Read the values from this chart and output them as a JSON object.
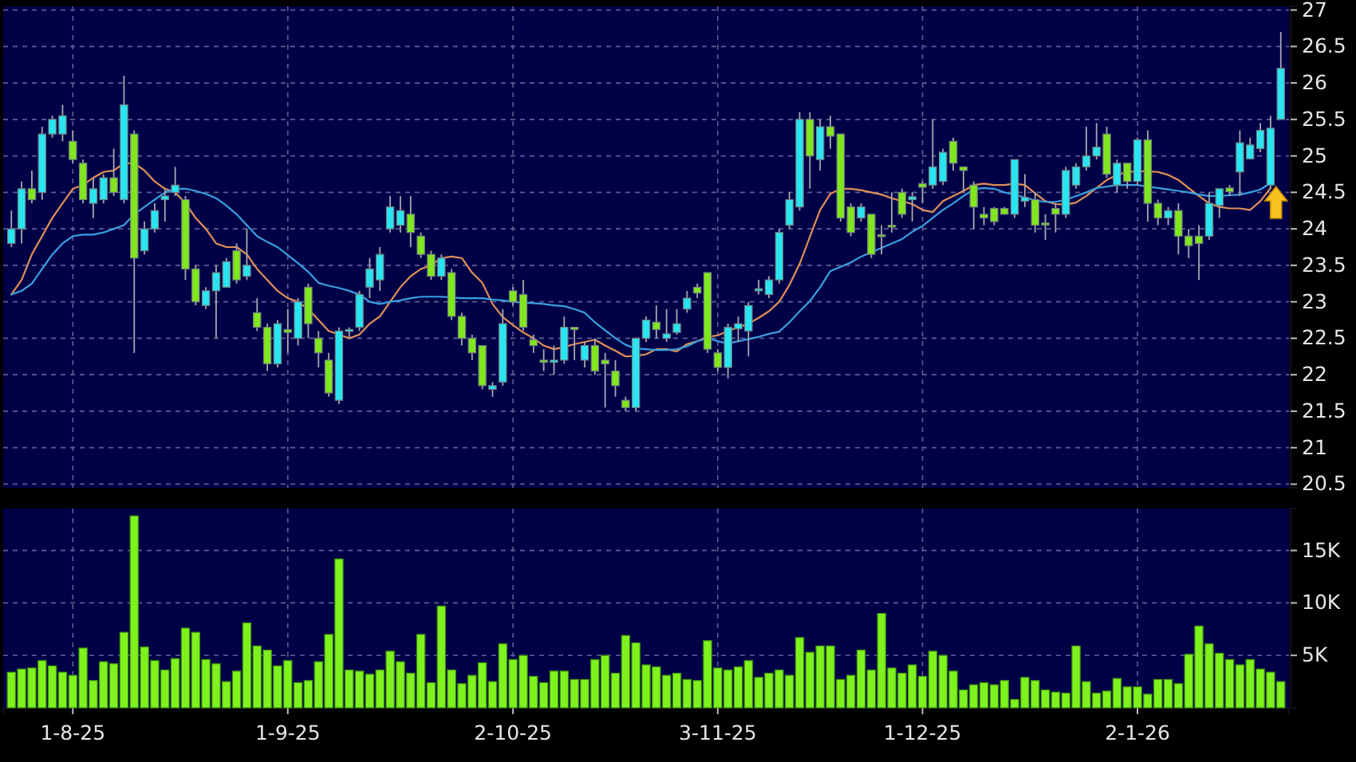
{
  "chart_data": [
    {
      "type": "candlestick",
      "categories": [
        null,
        null,
        null,
        null,
        null,
        null,
        null,
        null,
        null,
        null,
        null,
        null,
        null,
        null,
        null,
        null,
        null,
        null,
        null,
        null,
        null,
        null,
        null,
        null,
        null,
        null,
        null,
        null,
        null,
        null,
        null,
        null,
        null,
        null,
        null,
        null,
        null,
        null,
        null,
        null,
        null,
        null,
        null,
        null,
        null,
        null,
        null,
        null,
        null,
        null,
        null,
        null,
        null,
        null,
        null,
        null,
        null,
        null,
        null,
        null,
        null,
        null,
        null,
        null,
        null,
        null,
        null,
        null,
        null,
        null,
        null,
        null,
        null,
        null,
        null,
        null,
        null,
        null,
        null,
        null,
        null,
        null,
        null,
        null,
        null,
        null,
        null,
        null,
        null,
        null,
        null,
        null,
        null,
        null,
        null,
        null,
        null,
        null,
        null,
        null,
        null,
        null,
        null,
        null,
        null,
        null,
        null,
        null,
        null,
        null,
        null,
        null,
        null,
        null,
        null,
        null,
        null,
        null,
        null,
        null,
        null,
        null,
        null,
        null,
        null
      ],
      "ohlc": [
        [
          23.8,
          24.25,
          23.75,
          24.0
        ],
        [
          24.0,
          24.65,
          23.8,
          24.55
        ],
        [
          24.55,
          24.8,
          24.35,
          24.4
        ],
        [
          24.5,
          25.4,
          24.4,
          25.3
        ],
        [
          25.3,
          25.55,
          25.25,
          25.5
        ],
        [
          25.3,
          25.7,
          25.2,
          25.55
        ],
        [
          25.2,
          25.35,
          24.9,
          24.95
        ],
        [
          24.9,
          24.95,
          24.35,
          24.4
        ],
        [
          24.35,
          24.7,
          24.15,
          24.55
        ],
        [
          24.4,
          24.75,
          24.35,
          24.7
        ],
        [
          24.7,
          25.1,
          24.45,
          24.5
        ],
        [
          24.4,
          26.1,
          24.35,
          25.7
        ],
        [
          25.3,
          25.35,
          22.3,
          23.6
        ],
        [
          23.7,
          24.1,
          23.65,
          24.0
        ],
        [
          24.0,
          24.35,
          23.95,
          24.25
        ],
        [
          24.4,
          24.55,
          24.1,
          24.45
        ],
        [
          24.5,
          24.85,
          24.45,
          24.6
        ],
        [
          24.4,
          24.45,
          23.3,
          23.45
        ],
        [
          23.45,
          23.5,
          22.95,
          23.0
        ],
        [
          22.95,
          23.2,
          22.9,
          23.15
        ],
        [
          23.15,
          23.5,
          22.5,
          23.4
        ],
        [
          23.2,
          23.6,
          23.2,
          23.55
        ],
        [
          23.7,
          23.8,
          23.25,
          23.3
        ],
        [
          23.35,
          24.0,
          23.3,
          23.5
        ],
        [
          22.85,
          23.05,
          22.6,
          22.65
        ],
        [
          22.65,
          22.7,
          22.05,
          22.15
        ],
        [
          22.15,
          22.75,
          22.1,
          22.7
        ],
        [
          22.62,
          22.9,
          22.3,
          22.58
        ],
        [
          22.5,
          23.05,
          22.4,
          23.0
        ],
        [
          23.2,
          23.25,
          22.5,
          22.7
        ],
        [
          22.5,
          22.6,
          22.1,
          22.3
        ],
        [
          22.2,
          22.3,
          21.7,
          21.75
        ],
        [
          21.65,
          22.65,
          21.6,
          22.6
        ],
        [
          22.6,
          22.65,
          22.5,
          22.62
        ],
        [
          22.65,
          23.15,
          22.6,
          23.1
        ],
        [
          23.2,
          23.6,
          23.05,
          23.45
        ],
        [
          23.3,
          23.75,
          23.15,
          23.65
        ],
        [
          24.0,
          24.45,
          23.95,
          24.3
        ],
        [
          24.05,
          24.45,
          23.95,
          24.25
        ],
        [
          24.2,
          24.45,
          23.75,
          23.95
        ],
        [
          23.9,
          23.95,
          23.6,
          23.65
        ],
        [
          23.65,
          23.7,
          23.3,
          23.35
        ],
        [
          23.35,
          23.65,
          23.3,
          23.6
        ],
        [
          23.4,
          23.45,
          22.75,
          22.8
        ],
        [
          22.8,
          22.85,
          22.4,
          22.5
        ],
        [
          22.5,
          22.55,
          22.2,
          22.3
        ],
        [
          22.4,
          22.4,
          21.8,
          21.85
        ],
        [
          21.8,
          21.9,
          21.7,
          21.85
        ],
        [
          21.9,
          22.9,
          21.85,
          22.7
        ],
        [
          23.15,
          23.2,
          22.95,
          23.0
        ],
        [
          23.1,
          23.3,
          22.6,
          22.65
        ],
        [
          22.48,
          22.55,
          22.3,
          22.4
        ],
        [
          22.2,
          22.35,
          22.05,
          22.17
        ],
        [
          22.17,
          22.4,
          22.0,
          22.2
        ],
        [
          22.2,
          22.8,
          22.15,
          22.65
        ],
        [
          22.65,
          22.65,
          22.2,
          22.62
        ],
        [
          22.2,
          22.45,
          22.1,
          22.4
        ],
        [
          22.4,
          22.5,
          22.0,
          22.05
        ],
        [
          22.2,
          22.3,
          21.55,
          22.15
        ],
        [
          22.05,
          22.2,
          21.7,
          21.85
        ],
        [
          21.65,
          21.7,
          21.5,
          21.55
        ],
        [
          21.55,
          22.5,
          21.5,
          22.5
        ],
        [
          22.5,
          22.8,
          22.45,
          22.75
        ],
        [
          22.72,
          22.95,
          22.5,
          22.62
        ],
        [
          22.5,
          22.9,
          22.45,
          22.56
        ],
        [
          22.58,
          22.9,
          22.55,
          22.7
        ],
        [
          22.9,
          23.15,
          22.85,
          23.05
        ],
        [
          23.2,
          23.25,
          23.05,
          23.12
        ],
        [
          23.4,
          23.4,
          22.3,
          22.35
        ],
        [
          22.3,
          22.35,
          22.05,
          22.1
        ],
        [
          22.1,
          22.7,
          21.95,
          22.65
        ],
        [
          22.63,
          22.8,
          22.45,
          22.7
        ],
        [
          22.6,
          23.0,
          22.25,
          22.95
        ],
        [
          23.15,
          23.3,
          23.1,
          23.18
        ],
        [
          23.1,
          23.35,
          23.05,
          23.3
        ],
        [
          23.3,
          24.0,
          23.25,
          23.95
        ],
        [
          24.05,
          24.5,
          24.0,
          24.4
        ],
        [
          24.3,
          25.6,
          24.25,
          25.5
        ],
        [
          25.5,
          25.6,
          24.55,
          25.0
        ],
        [
          24.95,
          25.5,
          24.8,
          25.4
        ],
        [
          25.4,
          25.55,
          25.1,
          25.27
        ],
        [
          25.3,
          25.3,
          24.1,
          24.15
        ],
        [
          24.3,
          24.35,
          23.9,
          23.95
        ],
        [
          24.15,
          24.35,
          24.1,
          24.3
        ],
        [
          24.2,
          24.2,
          23.6,
          23.65
        ],
        [
          23.92,
          24.05,
          23.65,
          23.9
        ],
        [
          24.05,
          24.5,
          23.95,
          24.03
        ],
        [
          24.5,
          24.55,
          24.15,
          24.2
        ],
        [
          24.4,
          24.5,
          24.1,
          24.44
        ],
        [
          24.62,
          24.65,
          24.35,
          24.57
        ],
        [
          24.6,
          25.5,
          24.55,
          24.85
        ],
        [
          24.65,
          25.1,
          24.6,
          25.05
        ],
        [
          25.2,
          25.25,
          24.8,
          24.9
        ],
        [
          24.85,
          24.85,
          24.5,
          24.8
        ],
        [
          24.6,
          24.65,
          24.0,
          24.3
        ],
        [
          24.2,
          24.3,
          24.05,
          24.15
        ],
        [
          24.28,
          24.3,
          24.05,
          24.1
        ],
        [
          24.28,
          24.3,
          24.2,
          24.2
        ],
        [
          24.2,
          24.95,
          24.15,
          24.95
        ],
        [
          24.38,
          24.75,
          24.3,
          24.43
        ],
        [
          24.4,
          24.5,
          23.95,
          24.05
        ],
        [
          24.08,
          24.2,
          23.85,
          24.06
        ],
        [
          24.28,
          24.35,
          23.95,
          24.2
        ],
        [
          24.2,
          24.85,
          24.15,
          24.8
        ],
        [
          24.6,
          24.9,
          24.55,
          24.85
        ],
        [
          24.85,
          25.4,
          24.8,
          25.0
        ],
        [
          25.0,
          25.45,
          24.95,
          25.12
        ],
        [
          25.3,
          25.4,
          24.7,
          24.75
        ],
        [
          24.6,
          24.95,
          24.5,
          24.9
        ],
        [
          24.9,
          24.9,
          24.55,
          24.65
        ],
        [
          24.65,
          25.25,
          24.6,
          25.22
        ],
        [
          25.22,
          25.35,
          24.1,
          24.35
        ],
        [
          24.35,
          24.4,
          24.05,
          24.15
        ],
        [
          24.15,
          24.3,
          24.05,
          24.25
        ],
        [
          24.25,
          24.35,
          23.65,
          23.9
        ],
        [
          23.9,
          24.0,
          23.6,
          23.77
        ],
        [
          23.9,
          24.05,
          23.3,
          23.8
        ],
        [
          23.9,
          24.5,
          23.85,
          24.35
        ],
        [
          24.32,
          24.55,
          24.15,
          24.55
        ],
        [
          24.56,
          24.6,
          24.45,
          24.51
        ],
        [
          24.78,
          25.35,
          24.45,
          25.18
        ],
        [
          24.96,
          25.25,
          24.95,
          25.15
        ],
        [
          25.1,
          25.45,
          25.05,
          25.35
        ],
        [
          24.6,
          25.55,
          24.55,
          25.38
        ],
        [
          25.5,
          26.7,
          25.5,
          26.2
        ]
      ],
      "colors": [
        "#29e5f2",
        "#29e5f2",
        "#82e61e",
        "#29e5f2",
        "#29e5f2",
        "#29e5f2",
        "#82e61e",
        "#82e61e",
        "#29e5f2",
        "#29e5f2",
        "#82e61e",
        "#29e5f2",
        "#82e61e",
        "#29e5f2",
        "#29e5f2",
        "#29e5f2",
        "#29e5f2",
        "#82e61e",
        "#82e61e",
        "#29e5f2",
        "#29e5f2",
        "#29e5f2",
        "#82e61e",
        "#29e5f2",
        "#82e61e",
        "#82e61e",
        "#29e5f2",
        "#82e61e",
        "#29e5f2",
        "#82e61e",
        "#82e61e",
        "#82e61e",
        "#29e5f2",
        "#29e5f2",
        "#29e5f2",
        "#29e5f2",
        "#29e5f2",
        "#29e5f2",
        "#29e5f2",
        "#82e61e",
        "#82e61e",
        "#82e61e",
        "#29e5f2",
        "#82e61e",
        "#82e61e",
        "#82e61e",
        "#82e61e",
        "#29e5f2",
        "#29e5f2",
        "#82e61e",
        "#82e61e",
        "#82e61e",
        "#82e61e",
        "#29e5f2",
        "#29e5f2",
        "#82e61e",
        "#29e5f2",
        "#82e61e",
        "#82e61e",
        "#82e61e",
        "#82e61e",
        "#29e5f2",
        "#29e5f2",
        "#82e61e",
        "#29e5f2",
        "#29e5f2",
        "#29e5f2",
        "#82e61e",
        "#82e61e",
        "#82e61e",
        "#29e5f2",
        "#29e5f2",
        "#29e5f2",
        "#29e5f2",
        "#29e5f2",
        "#29e5f2",
        "#29e5f2",
        "#29e5f2",
        "#82e61e",
        "#29e5f2",
        "#82e61e",
        "#82e61e",
        "#82e61e",
        "#29e5f2",
        "#82e61e",
        "#82e61e",
        "#82e61e",
        "#82e61e",
        "#29e5f2",
        "#82e61e",
        "#29e5f2",
        "#29e5f2",
        "#82e61e",
        "#82e61e",
        "#82e61e",
        "#82e61e",
        "#82e61e",
        "#82e61e",
        "#29e5f2",
        "#29e5f2",
        "#82e61e",
        "#82e61e",
        "#82e61e",
        "#29e5f2",
        "#29e5f2",
        "#29e5f2",
        "#29e5f2",
        "#82e61e",
        "#29e5f2",
        "#82e61e",
        "#29e5f2",
        "#82e61e",
        "#82e61e",
        "#29e5f2",
        "#82e61e",
        "#82e61e",
        "#82e61e",
        "#29e5f2",
        "#29e5f2",
        "#82e61e",
        "#29e5f2",
        "#29e5f2",
        "#29e5f2",
        "#29e5f2",
        "#29e5f2"
      ],
      "series": [
        {
          "type": "line",
          "color": "#e0905a",
          "values": [
            23.1,
            23.3,
            23.65,
            23.9,
            24.15,
            24.35,
            24.55,
            24.6,
            24.7,
            24.78,
            24.8,
            24.9,
            24.9,
            24.8,
            24.65,
            24.55,
            24.5,
            24.35,
            24.15,
            24.0,
            23.8,
            23.75,
            23.75,
            23.65,
            23.45,
            23.3,
            23.15,
            23.05,
            23.0,
            22.9,
            22.75,
            22.6,
            22.55,
            22.5,
            22.55,
            22.7,
            22.8,
            23.0,
            23.2,
            23.35,
            23.45,
            23.5,
            23.6,
            23.62,
            23.6,
            23.4,
            23.26,
            22.97,
            22.79,
            22.68,
            22.58,
            22.5,
            22.4,
            22.35,
            22.38,
            22.42,
            22.45,
            22.48,
            22.4,
            22.33,
            22.25,
            22.26,
            22.28,
            22.35,
            22.35,
            22.32,
            22.42,
            22.46,
            22.52,
            22.54,
            22.6,
            22.65,
            22.7,
            22.78,
            22.87,
            23.0,
            23.23,
            23.52,
            23.89,
            24.26,
            24.48,
            24.55,
            24.55,
            24.53,
            24.5,
            24.47,
            24.42,
            24.38,
            24.34,
            24.26,
            24.23,
            24.38,
            24.45,
            24.52,
            24.6,
            24.62,
            24.6,
            24.6,
            24.62,
            24.6,
            24.49,
            24.38,
            24.34,
            24.33,
            24.36,
            24.45,
            24.56,
            24.67,
            24.74,
            24.78,
            24.79,
            24.79,
            24.78,
            24.74,
            24.67,
            24.56,
            24.45,
            24.35,
            24.3,
            24.28,
            24.28,
            24.26,
            24.38,
            24.56,
            null
          ]
        },
        {
          "type": "line",
          "color": "#3a9fe0",
          "values": [
            23.1,
            23.15,
            23.25,
            23.45,
            23.65,
            23.8,
            23.9,
            23.92,
            23.92,
            23.95,
            24.0,
            24.05,
            24.2,
            24.3,
            24.4,
            24.5,
            24.55,
            24.55,
            24.52,
            24.48,
            24.42,
            24.32,
            24.2,
            24.05,
            23.9,
            23.82,
            23.75,
            23.64,
            23.53,
            23.41,
            23.26,
            23.22,
            23.19,
            23.15,
            23.1,
            23.0,
            22.97,
            23.0,
            23.02,
            23.05,
            23.07,
            23.07,
            23.07,
            23.06,
            23.05,
            23.05,
            23.05,
            23.03,
            23.02,
            23.0,
            22.99,
            22.98,
            22.97,
            22.95,
            22.94,
            22.9,
            22.85,
            22.72,
            22.61,
            22.5,
            22.41,
            22.36,
            22.35,
            22.34,
            22.34,
            22.35,
            22.39,
            22.46,
            22.5,
            22.46,
            22.43,
            22.46,
            22.49,
            22.52,
            22.56,
            22.59,
            22.72,
            22.87,
            23.01,
            23.2,
            23.42,
            23.48,
            23.54,
            23.62,
            23.68,
            23.74,
            23.8,
            23.86,
            23.96,
            24.04,
            24.15,
            24.26,
            24.35,
            24.45,
            24.54,
            24.56,
            24.55,
            24.5,
            24.47,
            24.43,
            24.39,
            24.37,
            24.37,
            24.4,
            24.45,
            24.5,
            24.56,
            24.58,
            24.6,
            24.6,
            24.6,
            24.58,
            24.56,
            24.54,
            24.52,
            24.5,
            24.47,
            24.45,
            24.45,
            24.46,
            24.47,
            24.5,
            24.54,
            24.63,
            null
          ]
        }
      ],
      "ylim": [
        20.45,
        27.05
      ],
      "yticks": [
        20.5,
        21,
        21.5,
        22,
        22.5,
        23,
        23.5,
        24,
        24.5,
        25,
        25.5,
        26,
        26.5,
        27
      ],
      "grid": true,
      "tick_labels": "y"
    },
    {
      "type": "bar",
      "categories": [
        null,
        null,
        null,
        null,
        null,
        null,
        "1-8-25",
        null,
        null,
        null,
        null,
        null,
        null,
        null,
        null,
        null,
        null,
        null,
        null,
        null,
        null,
        null,
        null,
        null,
        null,
        null,
        null,
        "1-9-25",
        null,
        null,
        null,
        null,
        null,
        null,
        null,
        null,
        null,
        null,
        null,
        null,
        null,
        null,
        null,
        null,
        null,
        null,
        null,
        null,
        null,
        "2-10-25",
        null,
        null,
        null,
        null,
        null,
        null,
        null,
        null,
        null,
        null,
        null,
        null,
        null,
        null,
        null,
        null,
        null,
        null,
        null,
        "3-11-25",
        null,
        null,
        null,
        null,
        null,
        null,
        null,
        null,
        null,
        null,
        null,
        null,
        null,
        null,
        null,
        null,
        null,
        null,
        null,
        "1-12-25",
        null,
        null,
        null,
        null,
        null,
        null,
        null,
        null,
        null,
        null,
        null,
        null,
        null,
        null,
        null,
        null,
        null,
        null,
        null,
        null,
        "2-1-26",
        null,
        null,
        null,
        null,
        null,
        null,
        null,
        null,
        null,
        null,
        null,
        null,
        null,
        null
      ],
      "values": [
        3.4,
        3.7,
        3.8,
        4.5,
        4.0,
        3.4,
        3.1,
        5.7,
        2.6,
        4.4,
        4.2,
        7.2,
        18.3,
        5.8,
        4.5,
        3.6,
        4.7,
        7.6,
        7.2,
        4.6,
        4.2,
        2.5,
        3.5,
        8.1,
        5.9,
        5.5,
        4.0,
        4.5,
        2.4,
        2.6,
        4.4,
        7.0,
        14.2,
        3.6,
        3.5,
        3.2,
        3.6,
        5.4,
        4.4,
        3.3,
        7.0,
        2.4,
        9.7,
        3.6,
        2.3,
        3.1,
        4.3,
        2.5,
        6.1,
        4.6,
        5.0,
        3.0,
        2.4,
        3.5,
        3.5,
        2.7,
        2.7,
        4.6,
        5.0,
        3.3,
        6.9,
        6.2,
        4.1,
        3.9,
        3.1,
        3.3,
        2.7,
        2.6,
        6.4,
        3.8,
        3.6,
        3.9,
        4.5,
        2.9,
        3.3,
        3.6,
        3.1,
        6.7,
        5.3,
        5.9,
        5.9,
        2.7,
        3.1,
        5.5,
        3.6,
        9.0,
        3.8,
        3.3,
        4.1,
        3.0,
        5.4,
        5.0,
        3.5,
        1.7,
        2.2,
        2.4,
        2.2,
        2.6,
        0.8,
        2.9,
        2.6,
        1.7,
        1.5,
        1.4,
        5.9,
        2.5,
        1.4,
        1.6,
        2.8,
        2.0,
        2.0,
        1.3,
        2.7,
        2.7,
        2.3,
        5.1,
        7.8,
        6.1,
        5.2,
        4.6,
        4.1,
        4.6,
        3.7,
        3.4,
        2.5
      ],
      "color": "#7ff21e",
      "ylim": [
        0,
        19
      ],
      "yticks": [
        {
          "value": 5,
          "label": "5K"
        },
        {
          "value": 10,
          "label": "10K"
        },
        {
          "value": 15,
          "label": "15K"
        }
      ],
      "grid": true
    }
  ]
}
